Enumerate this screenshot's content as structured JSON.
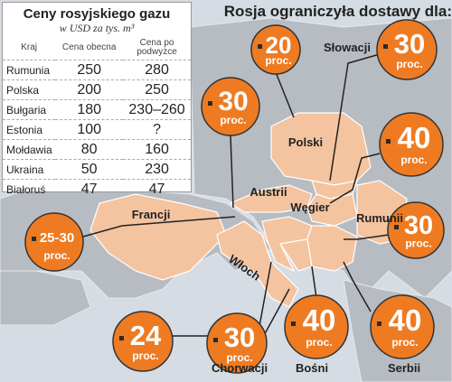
{
  "table": {
    "title": "Ceny rosyjskiego gazu",
    "subtitle": "w USD za tys. m³",
    "headers": [
      "Kraj",
      "Cena obecna",
      "Cena po podwyżce"
    ],
    "rows": [
      [
        "Rumunia",
        250,
        280
      ],
      [
        "Polska",
        200,
        250
      ],
      [
        "Bułgaria",
        180,
        "230–260"
      ],
      [
        "Estonia",
        100,
        "?"
      ],
      [
        "Mołdawia",
        80,
        160
      ],
      [
        "Ukraina",
        50,
        230
      ],
      [
        "Białoruś",
        47,
        47
      ]
    ]
  },
  "map": {
    "title": "Rosja ograniczyła dostawy dla:",
    "countries": [
      {
        "name": "Polski",
        "value": 20,
        "unit": "proc."
      },
      {
        "name": "Słowacji",
        "value": 30,
        "unit": "proc."
      },
      {
        "name": "Austrii",
        "value": 30,
        "unit": "proc."
      },
      {
        "name": "Węgier",
        "value": 40,
        "unit": "proc."
      },
      {
        "name": "Rumunii",
        "value": 30,
        "unit": "proc."
      },
      {
        "name": "Francji",
        "value": "25-30",
        "unit": "proc."
      },
      {
        "name": "Włoch",
        "value": 24,
        "unit": "proc."
      },
      {
        "name": "Chorwacji",
        "value": 30,
        "unit": "proc."
      },
      {
        "name": "Bośni",
        "value": 40,
        "unit": "proc."
      },
      {
        "name": "Serbii",
        "value": 40,
        "unit": "proc."
      }
    ]
  }
}
